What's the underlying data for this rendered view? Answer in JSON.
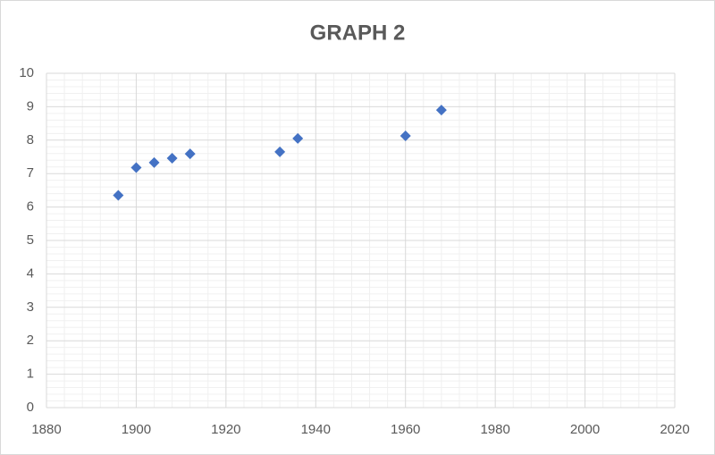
{
  "chart_data": {
    "type": "scatter",
    "title": "GRAPH 2",
    "x": [
      1896,
      1900,
      1904,
      1908,
      1912,
      1932,
      1936,
      1960,
      1968
    ],
    "values": [
      6.35,
      7.18,
      7.33,
      7.46,
      7.59,
      7.65,
      8.05,
      8.13,
      8.9
    ],
    "color": "#4472c4",
    "xlim": [
      1880,
      2020
    ],
    "xticks": [
      1880,
      1900,
      1920,
      1940,
      1960,
      1980,
      2000,
      2020
    ],
    "ylim": [
      0,
      10
    ],
    "yticks": [
      0,
      1,
      2,
      3,
      4,
      5,
      6,
      7,
      8,
      9,
      10
    ],
    "grid": true,
    "minor_grid": true
  }
}
